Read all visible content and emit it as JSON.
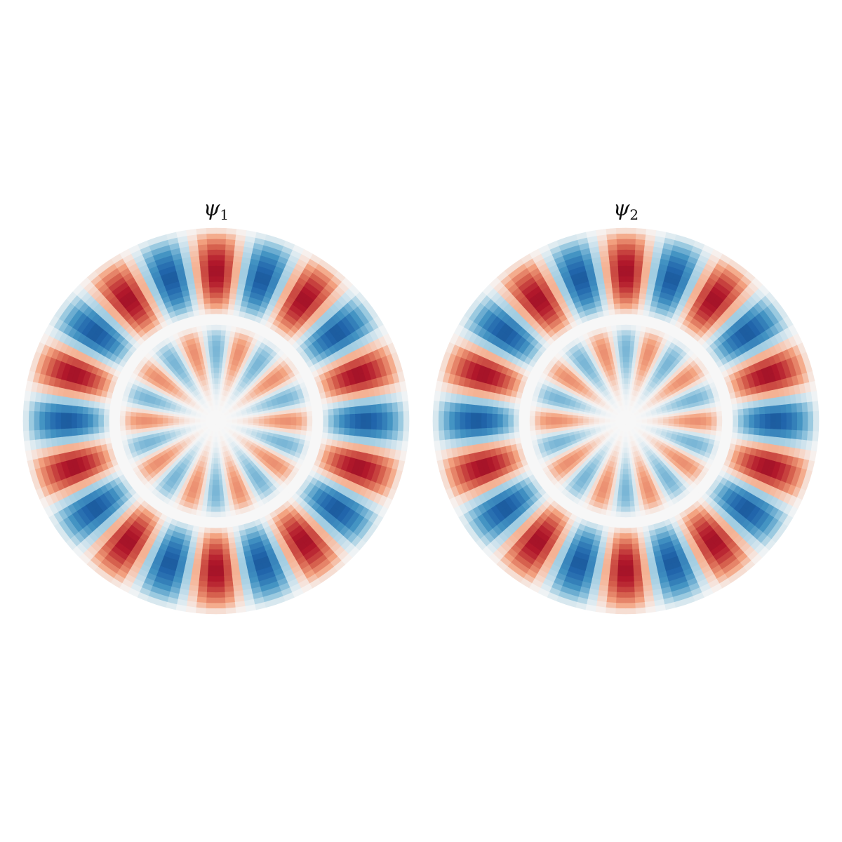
{
  "chart_data": [
    {
      "type": "heatmap",
      "title": {
        "symbol": "ψ",
        "subscript": "1"
      },
      "axes_visible": false,
      "colormap": "RdBu_r",
      "color_range": [
        -1,
        1
      ],
      "pattern": {
        "angular_order": 10,
        "radial_lobes": 2,
        "phase": 0.0,
        "sign": 1
      }
    },
    {
      "type": "heatmap",
      "title": {
        "symbol": "ψ",
        "subscript": "2"
      },
      "axes_visible": false,
      "colormap": "RdBu_r",
      "color_range": [
        -1,
        1
      ],
      "pattern": {
        "angular_order": 10,
        "radial_lobes": 2,
        "phase": 0.0,
        "sign": 1
      }
    }
  ]
}
